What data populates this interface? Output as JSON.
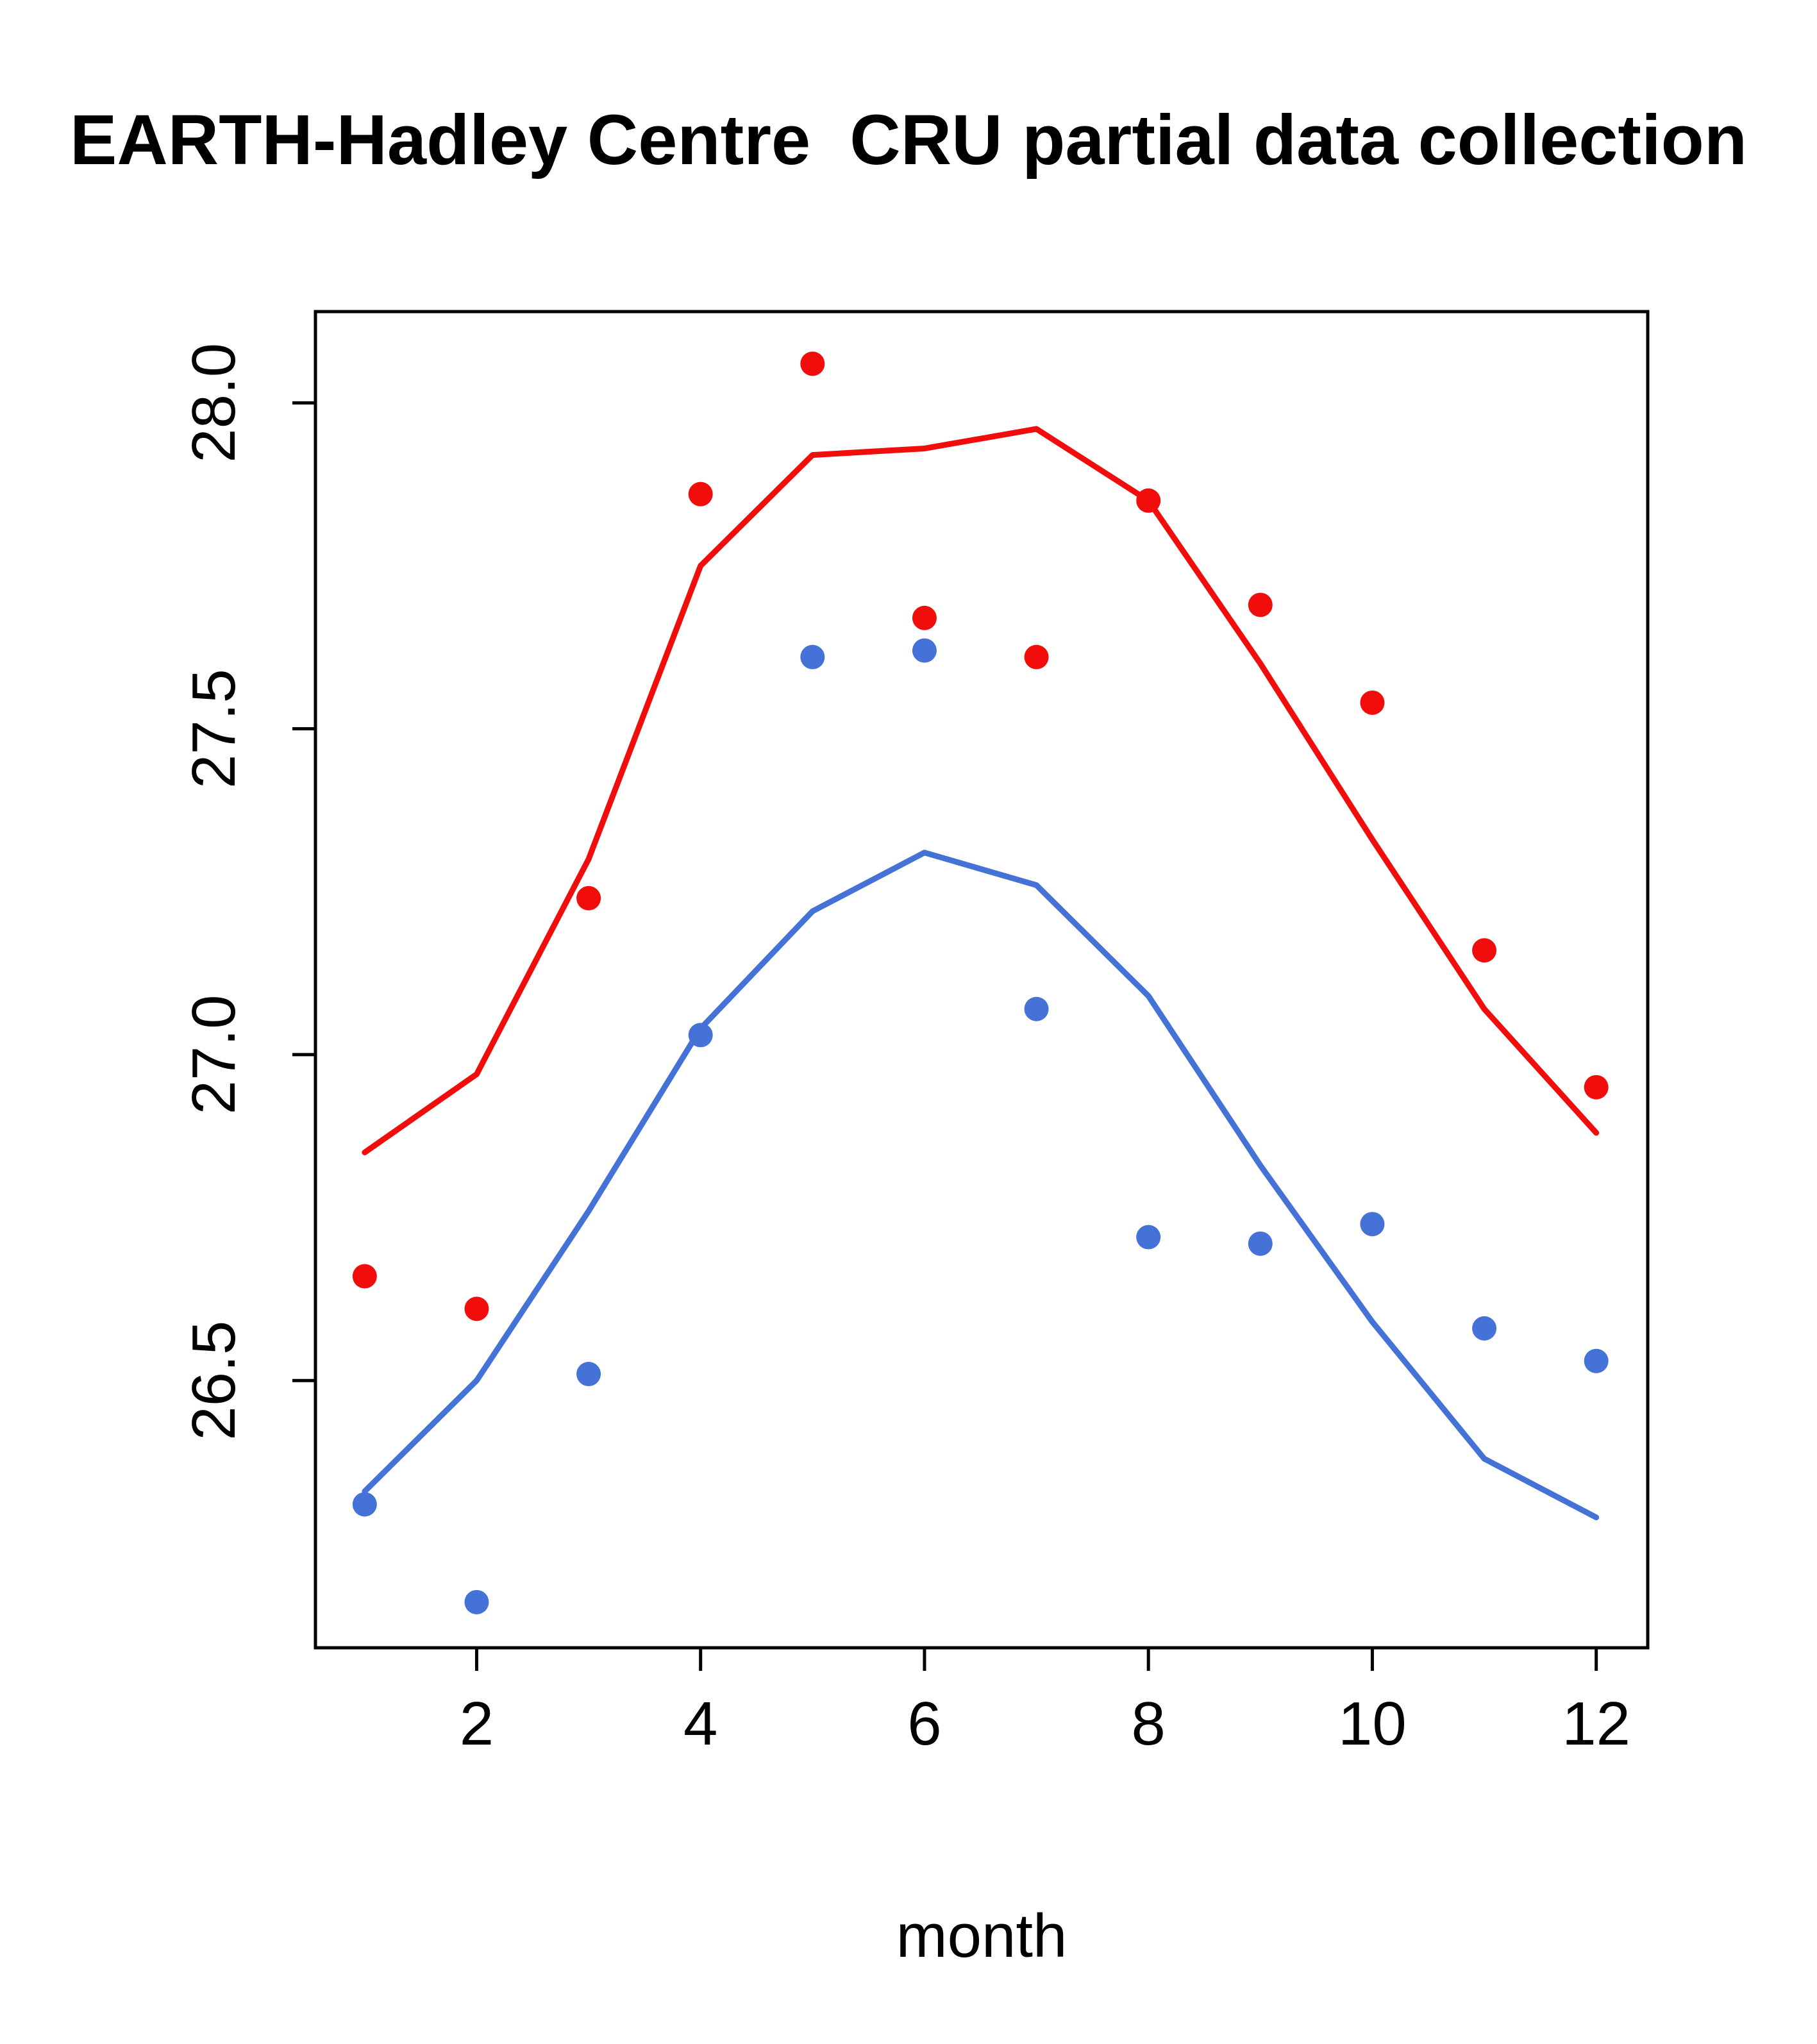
{
  "title": "EARTH-Hadley Centre  CRU partial data collection",
  "xlabel": "month",
  "chart_data": {
    "type": "scatter",
    "x": [
      1,
      2,
      3,
      4,
      5,
      6,
      7,
      8,
      9,
      10,
      11,
      12
    ],
    "series": [
      {
        "name": "red-points",
        "kind": "points",
        "color": "#f20d0d",
        "values": [
          26.66,
          26.61,
          27.24,
          27.86,
          28.06,
          27.67,
          27.61,
          27.85,
          27.69,
          27.54,
          27.16,
          26.95
        ]
      },
      {
        "name": "red-line",
        "kind": "line",
        "color": "#f20d0d",
        "values": [
          26.85,
          26.97,
          27.3,
          27.75,
          27.92,
          27.93,
          27.96,
          27.85,
          27.6,
          27.33,
          27.07,
          26.88
        ]
      },
      {
        "name": "blue-points",
        "kind": "points",
        "color": "#4472d6",
        "values": [
          26.31,
          26.16,
          26.51,
          27.03,
          27.61,
          27.62,
          27.07,
          26.72,
          26.71,
          26.74,
          26.58,
          26.53
        ]
      },
      {
        "name": "blue-line",
        "kind": "line",
        "color": "#4472d6",
        "values": [
          26.33,
          26.5,
          26.76,
          27.04,
          27.22,
          27.31,
          27.26,
          27.09,
          26.83,
          26.59,
          26.38,
          26.29
        ]
      }
    ],
    "title": "EARTH-Hadley Centre  CRU partial data collection",
    "xlabel": "month",
    "ylabel": "",
    "xticks": [
      "2",
      "4",
      "6",
      "8",
      "10",
      "12"
    ],
    "xtick_values": [
      2,
      4,
      6,
      8,
      10,
      12
    ],
    "yticks": [
      "26.5",
      "27.0",
      "27.5",
      "28.0"
    ],
    "ytick_values": [
      26.5,
      27.0,
      27.5,
      28.0
    ],
    "xlim": [
      0.56,
      12.46
    ],
    "ylim": [
      26.09,
      28.14
    ],
    "grid": false,
    "legend": "none"
  }
}
